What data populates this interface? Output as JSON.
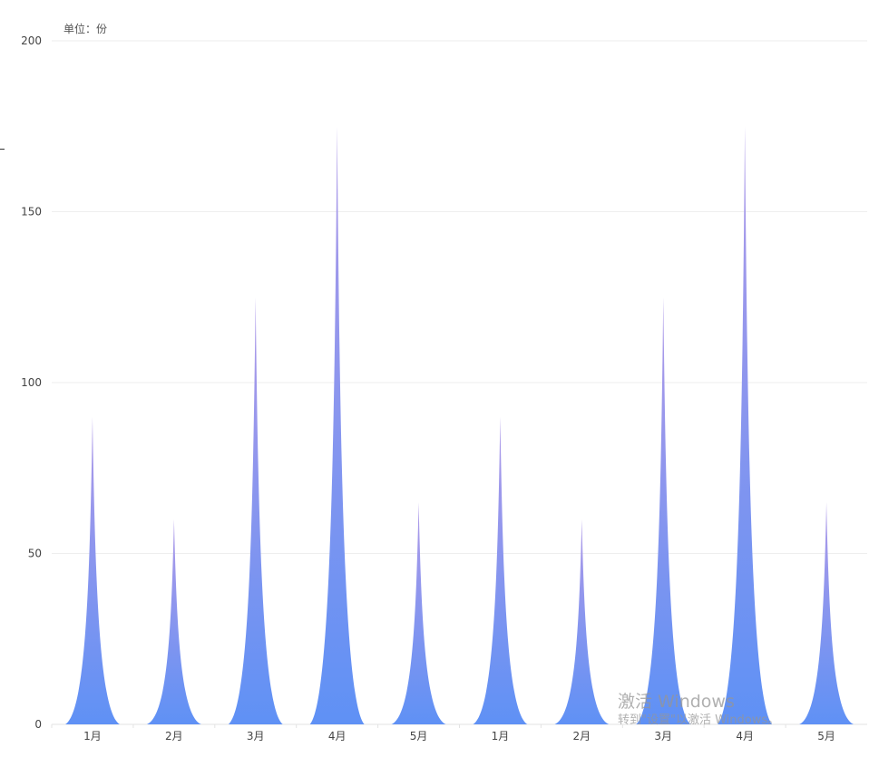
{
  "chart_data": {
    "type": "bar",
    "unit_label": "单位：份",
    "categories": [
      "1月",
      "2月",
      "3月",
      "4月",
      "5月",
      "1月",
      "2月",
      "3月",
      "4月",
      "5月"
    ],
    "values": [
      90,
      60,
      125,
      175,
      65,
      90,
      60,
      125,
      175,
      65
    ],
    "ylim": [
      0,
      200
    ],
    "yticks": [
      "0",
      "50",
      "100",
      "150",
      "200"
    ],
    "grid": true,
    "colors": {
      "bar_top": "#b09ae8",
      "bar_bottom": "#5f91f5",
      "grid": "#eeeeee"
    }
  },
  "watermark": {
    "title": "激活 Windows",
    "subtitle": "转到\"设置\"以激活 Windows。"
  }
}
